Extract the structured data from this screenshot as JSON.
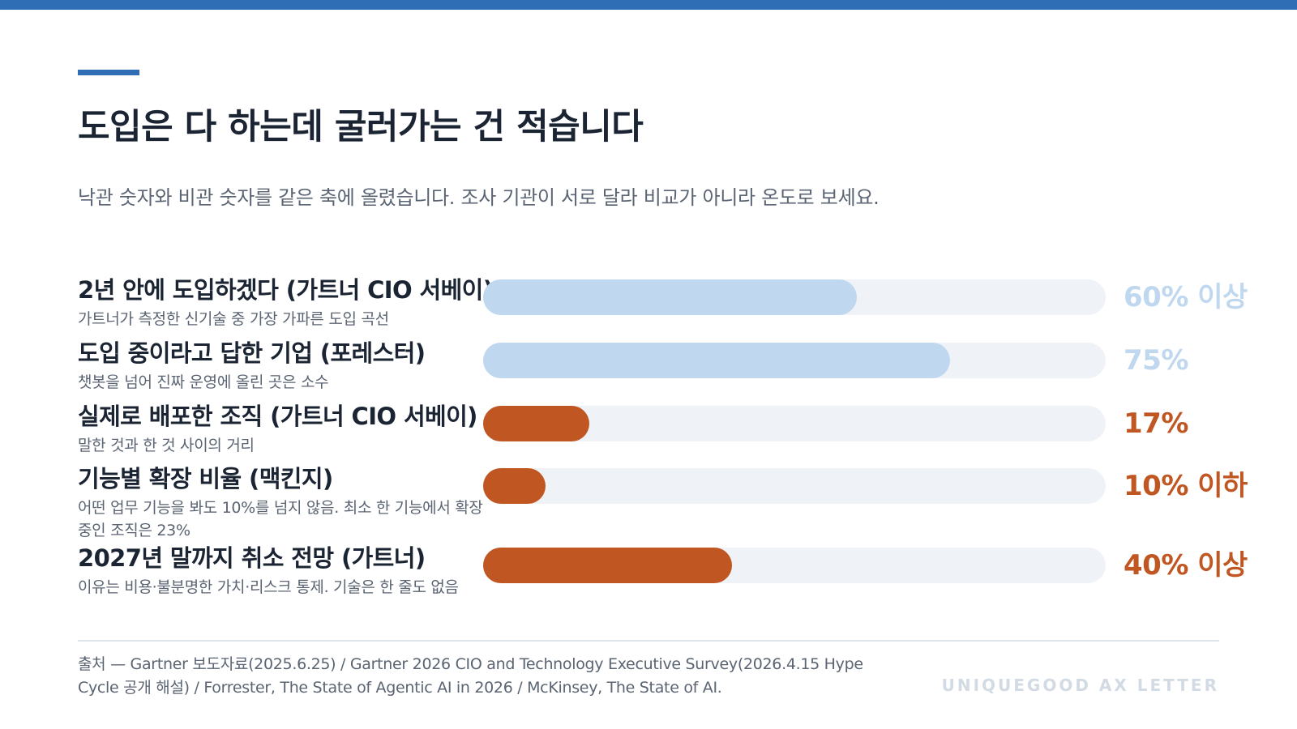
{
  "colors": {
    "brand": "#2f6db5",
    "optimistic": "#bfd7ef",
    "pessimistic": "#c05621",
    "track": "#eff3f8"
  },
  "header": {
    "title": "도입은 다 하는데 굴러가는 건 적습니다",
    "subtitle": "낙관 숫자와 비관 숫자를 같은 축에 올렸습니다. 조사 기관이 서로 달라 비교가 아니라 온도로 보세요."
  },
  "chart_data": {
    "type": "bar",
    "orientation": "horizontal",
    "xlim": [
      0,
      100
    ],
    "unit": "%",
    "grid": false,
    "rows": [
      {
        "label": "2년 안에 도입하겠다 (가트너 CIO 서베이)",
        "description": "가트너가 측정한 신기술 중 가장 가파른 도입 곡선",
        "value": 60,
        "value_label": "60% 이상",
        "tone": "optimistic"
      },
      {
        "label": "도입 중이라고 답한 기업 (포레스터)",
        "description": "챗봇을 넘어 진짜 운영에 올린 곳은 소수",
        "value": 75,
        "value_label": "75%",
        "tone": "optimistic"
      },
      {
        "label": "실제로 배포한 조직 (가트너 CIO 서베이)",
        "description": "말한 것과 한 것 사이의 거리",
        "value": 17,
        "value_label": "17%",
        "tone": "pessimistic"
      },
      {
        "label": "기능별 확장 비율 (맥킨지)",
        "description": "어떤 업무 기능을 봐도 10%를 넘지 않음. 최소 한 기능에서 확장 중인 조직은 23%",
        "value": 10,
        "value_label": "10% 이하",
        "tone": "pessimistic"
      },
      {
        "label": "2027년 말까지 취소 전망 (가트너)",
        "description": "이유는 비용·불분명한 가치·리스크 통제. 기술은 한 줄도 없음",
        "value": 40,
        "value_label": "40% 이상",
        "tone": "pessimistic"
      }
    ]
  },
  "footer": {
    "source": "출처 — Gartner 보도자료(2025.6.25) / Gartner 2026 CIO and Technology Executive Survey(2026.4.15 Hype Cycle 공개 해설) / Forrester, The State of Agentic AI in 2026 / McKinsey, The State of AI.",
    "brand": "UNIQUEGOOD AX LETTER"
  }
}
